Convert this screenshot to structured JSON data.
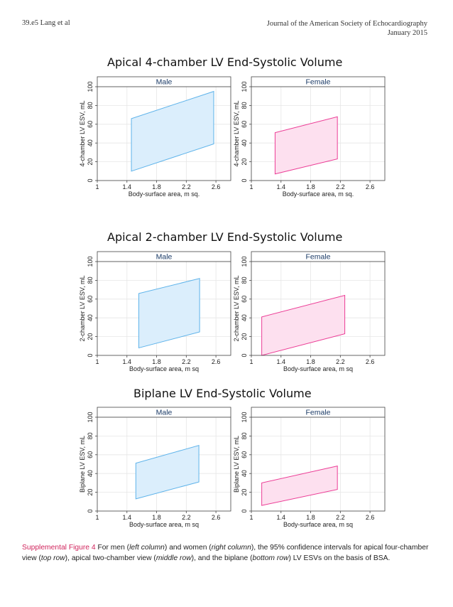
{
  "header": {
    "left": "39.e5   Lang et al",
    "right_line1": "Journal of the American Society of Echocardiography",
    "right_line2": "January 2015"
  },
  "colors": {
    "male_fill": "#dbeefc",
    "male_stroke": "#5eb3ea",
    "female_fill": "#fde0ef",
    "female_stroke": "#ec3d96",
    "grid": "#e6e6e6",
    "axis": "#444444"
  },
  "chart_data": [
    {
      "type": "area",
      "section_title": "Apical 4-chamber LV End-Systolic Volume",
      "title": "Male",
      "xlabel": "Body-surface area, m sq.",
      "ylabel": "4-chamber LV ESV, mL",
      "xlim": [
        1,
        2.8
      ],
      "ylim": [
        0,
        100
      ],
      "xticks": [
        "1",
        "1.4",
        "1.8",
        "2.2",
        "2.6"
      ],
      "yticks": [
        "0",
        "20",
        "40",
        "60",
        "80",
        "100"
      ],
      "band": {
        "x": [
          1.46,
          2.57
        ],
        "lower": [
          10,
          39
        ],
        "upper": [
          66,
          95
        ]
      }
    },
    {
      "type": "area",
      "section_title": "",
      "title": "Female",
      "xlabel": "Body-surface area, m sq.",
      "ylabel": "4-chamber LV ESV, mL",
      "xlim": [
        1,
        2.8
      ],
      "ylim": [
        0,
        100
      ],
      "xticks": [
        "1",
        "1.4",
        "1.8",
        "2.2",
        "2.6"
      ],
      "yticks": [
        "0",
        "20",
        "40",
        "60",
        "80",
        "100"
      ],
      "band": {
        "x": [
          1.32,
          2.16
        ],
        "lower": [
          7,
          23
        ],
        "upper": [
          51,
          68
        ]
      }
    },
    {
      "type": "area",
      "section_title": "Apical 2-chamber LV End-Systolic Volume",
      "title": "Male",
      "xlabel": "Body-surface area, m sq",
      "ylabel": "2-chamber LV ESV, mL",
      "xlim": [
        1,
        2.8
      ],
      "ylim": [
        0,
        100
      ],
      "xticks": [
        "1",
        "1.4",
        "1.8",
        "2.2",
        "2.6"
      ],
      "yticks": [
        "0",
        "20",
        "40",
        "60",
        "80",
        "100"
      ],
      "band": {
        "x": [
          1.56,
          2.38
        ],
        "lower": [
          8,
          25
        ],
        "upper": [
          66,
          82
        ]
      }
    },
    {
      "type": "area",
      "section_title": "",
      "title": "Female",
      "xlabel": "Body-surface area, m sq",
      "ylabel": "2-chamber LV ESV, mL",
      "xlim": [
        1,
        2.8
      ],
      "ylim": [
        0,
        100
      ],
      "xticks": [
        "1",
        "1.4",
        "1.8",
        "2.2",
        "2.6"
      ],
      "yticks": [
        "0",
        "20",
        "40",
        "60",
        "80",
        "100"
      ],
      "band": {
        "x": [
          1.14,
          2.26
        ],
        "lower": [
          0,
          23
        ],
        "upper": [
          41,
          64
        ]
      }
    },
    {
      "type": "area",
      "section_title": "Biplane LV End-Systolic Volume",
      "title": "Male",
      "xlabel": "Body-surface area, m sq",
      "ylabel": "Biplane LV ESV, mL",
      "xlim": [
        1,
        2.8
      ],
      "ylim": [
        0,
        100
      ],
      "xticks": [
        "1",
        "1.4",
        "1.8",
        "2.2",
        "2.6"
      ],
      "yticks": [
        "0",
        "20",
        "40",
        "60",
        "80",
        "100"
      ],
      "band": {
        "x": [
          1.52,
          2.37
        ],
        "lower": [
          13,
          31
        ],
        "upper": [
          51,
          70
        ]
      }
    },
    {
      "type": "area",
      "section_title": "",
      "title": "Female",
      "xlabel": "Body-surface area, m sq",
      "ylabel": "Biplane LV ESV, mL",
      "xlim": [
        1,
        2.8
      ],
      "ylim": [
        0,
        100
      ],
      "xticks": [
        "1",
        "1.4",
        "1.8",
        "2.2",
        "2.6"
      ],
      "yticks": [
        "0",
        "20",
        "40",
        "60",
        "80",
        "100"
      ],
      "band": {
        "x": [
          1.14,
          2.16
        ],
        "lower": [
          6,
          23
        ],
        "upper": [
          30,
          48
        ]
      }
    }
  ],
  "caption": {
    "label": "Supplemental Figure 4",
    "p1": "  For men (",
    "i1": "left column",
    "p2": ") and women (",
    "i2": "right column",
    "p3": "), the 95% confidence intervals for apical four-chamber view (",
    "i3": "top row",
    "p4": "), apical two-chamber view (",
    "i4": "middle row",
    "p5": "), and the biplane (",
    "i5": "bottom row",
    "p6": ") LV ESVs on the basis of BSA."
  }
}
